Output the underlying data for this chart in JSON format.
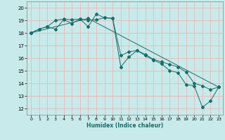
{
  "title": "",
  "xlabel": "Humidex (Indice chaleur)",
  "xlim": [
    -0.5,
    23.5
  ],
  "ylim": [
    11.5,
    20.5
  ],
  "xticks": [
    0,
    1,
    2,
    3,
    4,
    5,
    6,
    7,
    8,
    9,
    10,
    11,
    12,
    13,
    14,
    15,
    16,
    17,
    18,
    19,
    20,
    21,
    22,
    23
  ],
  "yticks": [
    12,
    13,
    14,
    15,
    16,
    17,
    18,
    19,
    20
  ],
  "bg_color": "#c8eaea",
  "grid_color": "#e8b8b8",
  "line_color": "#1a6b6b",
  "lines": [
    {
      "x": [
        0,
        1,
        2,
        3,
        4,
        5,
        6,
        7,
        8,
        9,
        10,
        11,
        12,
        13,
        14,
        15,
        16,
        17,
        18,
        19,
        20,
        21,
        22,
        23
      ],
      "y": [
        18.0,
        18.3,
        18.5,
        19.0,
        19.1,
        19.05,
        19.1,
        19.0,
        19.05,
        19.2,
        19.15,
        16.2,
        16.5,
        16.6,
        16.3,
        15.9,
        15.7,
        15.5,
        15.3,
        14.9,
        14.0,
        13.8,
        13.5,
        13.7
      ],
      "marker": "D",
      "markersize": 2.0,
      "linestyle": "-"
    },
    {
      "x": [
        0,
        1,
        2,
        3,
        4,
        5,
        6,
        7,
        8,
        9,
        10,
        11,
        12,
        13,
        14,
        15,
        16,
        17,
        18,
        19,
        20,
        21,
        22,
        23
      ],
      "y": [
        18.0,
        18.3,
        18.5,
        18.3,
        19.05,
        18.75,
        19.1,
        18.5,
        19.5,
        19.2,
        19.15,
        15.3,
        16.1,
        16.6,
        16.2,
        15.85,
        15.55,
        15.0,
        14.85,
        13.9,
        13.8,
        12.1,
        12.6,
        13.7
      ],
      "marker": "D",
      "markersize": 2.0,
      "linestyle": "-"
    },
    {
      "x": [
        0,
        7,
        23
      ],
      "y": [
        18.0,
        19.15,
        13.7
      ],
      "marker": "D",
      "markersize": 2.0,
      "linestyle": "-"
    }
  ]
}
